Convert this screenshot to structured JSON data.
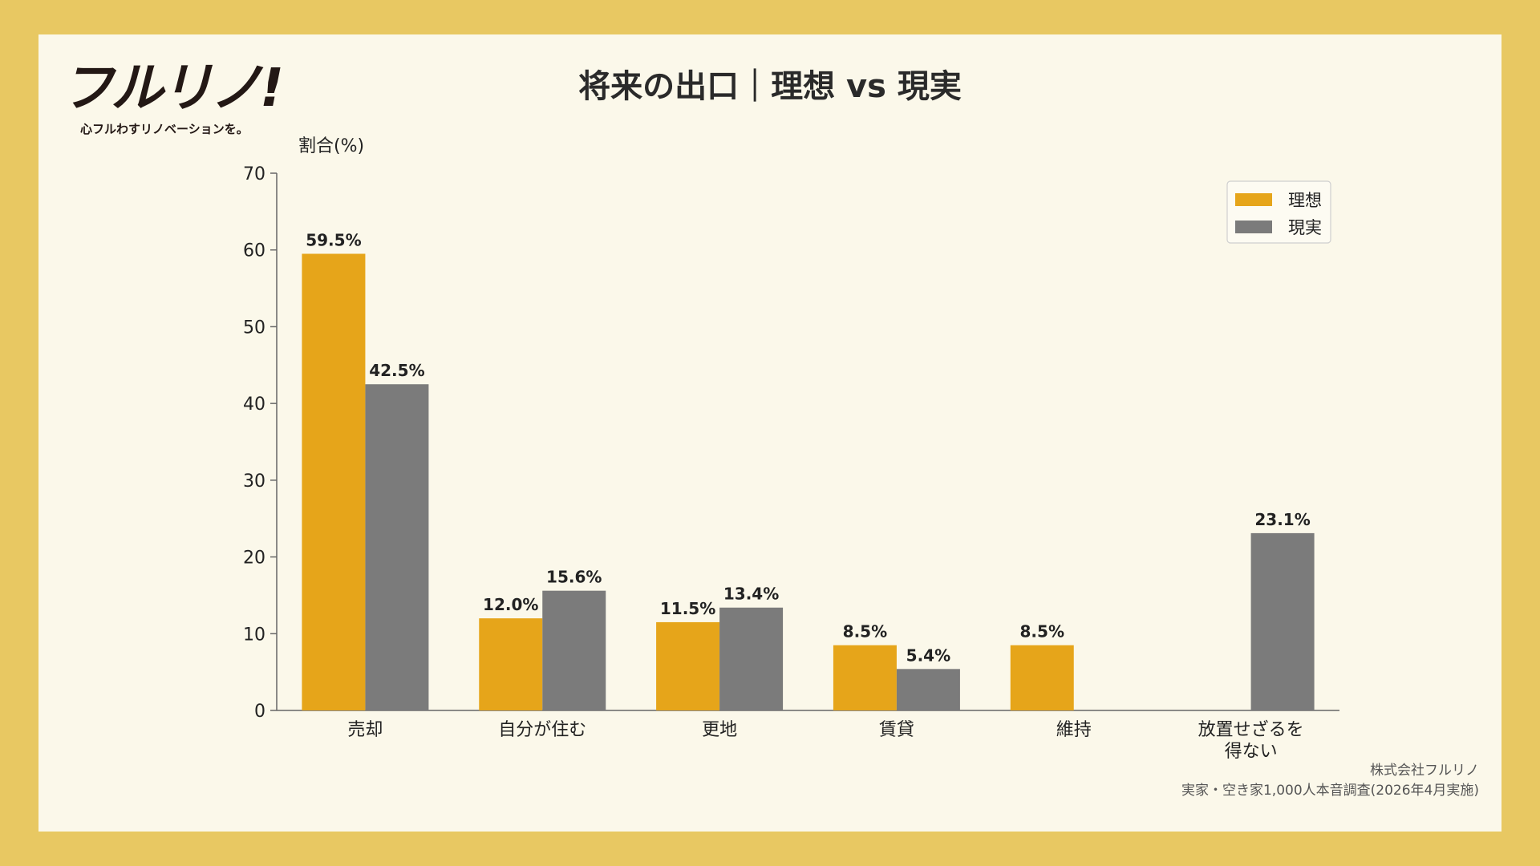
{
  "logo": {
    "brand": "フルリノ!",
    "tagline": "心フルわすリノベーションを。"
  },
  "source": {
    "company": "株式会社フルリノ",
    "survey": "実家・空き家1,000人本音調査(2026年4月実施)"
  },
  "colors": {
    "frame": "#e8c862",
    "background": "#fbf8ea",
    "ideal": "#e6a51a",
    "reality": "#7b7b7b"
  },
  "chart_data": {
    "type": "bar",
    "title": "将来の出口｜理想 vs 現実",
    "xlabel": "",
    "ylabel": "割合(%)",
    "ylim": [
      0,
      70
    ],
    "yticks": [
      0,
      10,
      20,
      30,
      40,
      50,
      60,
      70
    ],
    "categories": [
      "売却",
      "自分が住む",
      "更地",
      "賃貸",
      "維持",
      "放置せざるを得ない"
    ],
    "category_lines": [
      [
        "売却"
      ],
      [
        "自分が住む"
      ],
      [
        "更地"
      ],
      [
        "賃貸"
      ],
      [
        "維持"
      ],
      [
        "放置せざるを",
        "得ない"
      ]
    ],
    "series": [
      {
        "name": "理想",
        "color": "#e6a51a",
        "values": [
          59.5,
          12.0,
          11.5,
          8.5,
          8.5,
          null
        ]
      },
      {
        "name": "現実",
        "color": "#7b7b7b",
        "values": [
          42.5,
          15.6,
          13.4,
          5.4,
          null,
          23.1
        ]
      }
    ],
    "value_suffix": "%",
    "legend_position": "top-right",
    "grid": false
  }
}
